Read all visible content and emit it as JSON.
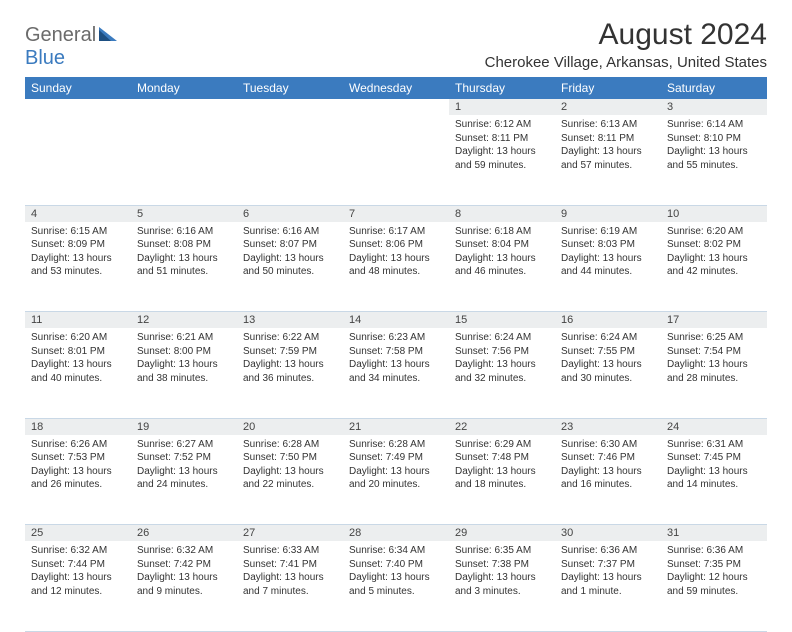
{
  "brand": {
    "general": "General",
    "blue": "Blue"
  },
  "title": "August 2024",
  "location": "Cherokee Village, Arkansas, United States",
  "colors": {
    "header_bg": "#3b7bbf",
    "header_text": "#ffffff",
    "daynum_bg": "#eceeef",
    "border": "#c9d8e6",
    "logo_gray": "#6b6b6b",
    "logo_blue": "#3b7bbf"
  },
  "weekdays": [
    "Sunday",
    "Monday",
    "Tuesday",
    "Wednesday",
    "Thursday",
    "Friday",
    "Saturday"
  ],
  "weeks": [
    {
      "days": [
        null,
        null,
        null,
        null,
        {
          "n": "1",
          "sunrise": "Sunrise: 6:12 AM",
          "sunset": "Sunset: 8:11 PM",
          "d1": "Daylight: 13 hours",
          "d2": "and 59 minutes."
        },
        {
          "n": "2",
          "sunrise": "Sunrise: 6:13 AM",
          "sunset": "Sunset: 8:11 PM",
          "d1": "Daylight: 13 hours",
          "d2": "and 57 minutes."
        },
        {
          "n": "3",
          "sunrise": "Sunrise: 6:14 AM",
          "sunset": "Sunset: 8:10 PM",
          "d1": "Daylight: 13 hours",
          "d2": "and 55 minutes."
        }
      ]
    },
    {
      "days": [
        {
          "n": "4",
          "sunrise": "Sunrise: 6:15 AM",
          "sunset": "Sunset: 8:09 PM",
          "d1": "Daylight: 13 hours",
          "d2": "and 53 minutes."
        },
        {
          "n": "5",
          "sunrise": "Sunrise: 6:16 AM",
          "sunset": "Sunset: 8:08 PM",
          "d1": "Daylight: 13 hours",
          "d2": "and 51 minutes."
        },
        {
          "n": "6",
          "sunrise": "Sunrise: 6:16 AM",
          "sunset": "Sunset: 8:07 PM",
          "d1": "Daylight: 13 hours",
          "d2": "and 50 minutes."
        },
        {
          "n": "7",
          "sunrise": "Sunrise: 6:17 AM",
          "sunset": "Sunset: 8:06 PM",
          "d1": "Daylight: 13 hours",
          "d2": "and 48 minutes."
        },
        {
          "n": "8",
          "sunrise": "Sunrise: 6:18 AM",
          "sunset": "Sunset: 8:04 PM",
          "d1": "Daylight: 13 hours",
          "d2": "and 46 minutes."
        },
        {
          "n": "9",
          "sunrise": "Sunrise: 6:19 AM",
          "sunset": "Sunset: 8:03 PM",
          "d1": "Daylight: 13 hours",
          "d2": "and 44 minutes."
        },
        {
          "n": "10",
          "sunrise": "Sunrise: 6:20 AM",
          "sunset": "Sunset: 8:02 PM",
          "d1": "Daylight: 13 hours",
          "d2": "and 42 minutes."
        }
      ]
    },
    {
      "days": [
        {
          "n": "11",
          "sunrise": "Sunrise: 6:20 AM",
          "sunset": "Sunset: 8:01 PM",
          "d1": "Daylight: 13 hours",
          "d2": "and 40 minutes."
        },
        {
          "n": "12",
          "sunrise": "Sunrise: 6:21 AM",
          "sunset": "Sunset: 8:00 PM",
          "d1": "Daylight: 13 hours",
          "d2": "and 38 minutes."
        },
        {
          "n": "13",
          "sunrise": "Sunrise: 6:22 AM",
          "sunset": "Sunset: 7:59 PM",
          "d1": "Daylight: 13 hours",
          "d2": "and 36 minutes."
        },
        {
          "n": "14",
          "sunrise": "Sunrise: 6:23 AM",
          "sunset": "Sunset: 7:58 PM",
          "d1": "Daylight: 13 hours",
          "d2": "and 34 minutes."
        },
        {
          "n": "15",
          "sunrise": "Sunrise: 6:24 AM",
          "sunset": "Sunset: 7:56 PM",
          "d1": "Daylight: 13 hours",
          "d2": "and 32 minutes."
        },
        {
          "n": "16",
          "sunrise": "Sunrise: 6:24 AM",
          "sunset": "Sunset: 7:55 PM",
          "d1": "Daylight: 13 hours",
          "d2": "and 30 minutes."
        },
        {
          "n": "17",
          "sunrise": "Sunrise: 6:25 AM",
          "sunset": "Sunset: 7:54 PM",
          "d1": "Daylight: 13 hours",
          "d2": "and 28 minutes."
        }
      ]
    },
    {
      "days": [
        {
          "n": "18",
          "sunrise": "Sunrise: 6:26 AM",
          "sunset": "Sunset: 7:53 PM",
          "d1": "Daylight: 13 hours",
          "d2": "and 26 minutes."
        },
        {
          "n": "19",
          "sunrise": "Sunrise: 6:27 AM",
          "sunset": "Sunset: 7:52 PM",
          "d1": "Daylight: 13 hours",
          "d2": "and 24 minutes."
        },
        {
          "n": "20",
          "sunrise": "Sunrise: 6:28 AM",
          "sunset": "Sunset: 7:50 PM",
          "d1": "Daylight: 13 hours",
          "d2": "and 22 minutes."
        },
        {
          "n": "21",
          "sunrise": "Sunrise: 6:28 AM",
          "sunset": "Sunset: 7:49 PM",
          "d1": "Daylight: 13 hours",
          "d2": "and 20 minutes."
        },
        {
          "n": "22",
          "sunrise": "Sunrise: 6:29 AM",
          "sunset": "Sunset: 7:48 PM",
          "d1": "Daylight: 13 hours",
          "d2": "and 18 minutes."
        },
        {
          "n": "23",
          "sunrise": "Sunrise: 6:30 AM",
          "sunset": "Sunset: 7:46 PM",
          "d1": "Daylight: 13 hours",
          "d2": "and 16 minutes."
        },
        {
          "n": "24",
          "sunrise": "Sunrise: 6:31 AM",
          "sunset": "Sunset: 7:45 PM",
          "d1": "Daylight: 13 hours",
          "d2": "and 14 minutes."
        }
      ]
    },
    {
      "days": [
        {
          "n": "25",
          "sunrise": "Sunrise: 6:32 AM",
          "sunset": "Sunset: 7:44 PM",
          "d1": "Daylight: 13 hours",
          "d2": "and 12 minutes."
        },
        {
          "n": "26",
          "sunrise": "Sunrise: 6:32 AM",
          "sunset": "Sunset: 7:42 PM",
          "d1": "Daylight: 13 hours",
          "d2": "and 9 minutes."
        },
        {
          "n": "27",
          "sunrise": "Sunrise: 6:33 AM",
          "sunset": "Sunset: 7:41 PM",
          "d1": "Daylight: 13 hours",
          "d2": "and 7 minutes."
        },
        {
          "n": "28",
          "sunrise": "Sunrise: 6:34 AM",
          "sunset": "Sunset: 7:40 PM",
          "d1": "Daylight: 13 hours",
          "d2": "and 5 minutes."
        },
        {
          "n": "29",
          "sunrise": "Sunrise: 6:35 AM",
          "sunset": "Sunset: 7:38 PM",
          "d1": "Daylight: 13 hours",
          "d2": "and 3 minutes."
        },
        {
          "n": "30",
          "sunrise": "Sunrise: 6:36 AM",
          "sunset": "Sunset: 7:37 PM",
          "d1": "Daylight: 13 hours",
          "d2": "and 1 minute."
        },
        {
          "n": "31",
          "sunrise": "Sunrise: 6:36 AM",
          "sunset": "Sunset: 7:35 PM",
          "d1": "Daylight: 12 hours",
          "d2": "and 59 minutes."
        }
      ]
    }
  ]
}
